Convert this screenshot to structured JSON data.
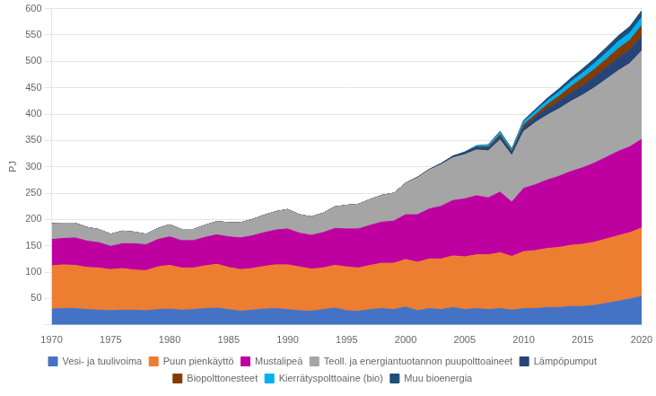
{
  "chart_data": {
    "type": "area",
    "stacked": true,
    "ylabel": "PJ",
    "x": [
      1970,
      1971,
      1972,
      1973,
      1974,
      1975,
      1976,
      1977,
      1978,
      1979,
      1980,
      1981,
      1982,
      1983,
      1984,
      1985,
      1986,
      1987,
      1988,
      1989,
      1990,
      1991,
      1992,
      1993,
      1994,
      1995,
      1996,
      1997,
      1998,
      1999,
      2000,
      2001,
      2002,
      2003,
      2004,
      2005,
      2006,
      2007,
      2008,
      2009,
      2010,
      2011,
      2012,
      2013,
      2014,
      2015,
      2016,
      2017,
      2018,
      2019,
      2020
    ],
    "series": [
      {
        "name": "Vesi- ja tuulivoima",
        "color": "#4472C4",
        "values": [
          30,
          31,
          31,
          29,
          28,
          27,
          28,
          28,
          27,
          29,
          30,
          28,
          29,
          31,
          32,
          29,
          26,
          28,
          30,
          31,
          29,
          27,
          26,
          29,
          32,
          27,
          26,
          29,
          31,
          29,
          34,
          27,
          31,
          29,
          33,
          29,
          31,
          29,
          31,
          28,
          31,
          31,
          33,
          33,
          35,
          35,
          37,
          41,
          45,
          49,
          54
        ]
      },
      {
        "name": "Puun pienkäyttö",
        "color": "#ED7D31",
        "values": [
          82,
          83,
          82,
          80,
          80,
          78,
          79,
          76,
          76,
          81,
          83,
          80,
          79,
          81,
          83,
          80,
          79,
          79,
          81,
          83,
          85,
          83,
          80,
          79,
          81,
          83,
          82,
          84,
          86,
          88,
          90,
          92,
          94,
          96,
          98,
          100,
          102,
          104,
          106,
          102,
          108,
          110,
          112,
          114,
          116,
          118,
          120,
          122,
          124,
          126,
          130
        ]
      },
      {
        "name": "Mustalipeä",
        "color": "#BE00A0",
        "values": [
          50,
          50,
          52,
          50,
          48,
          44,
          47,
          50,
          49,
          52,
          54,
          52,
          52,
          54,
          56,
          58,
          60,
          62,
          64,
          66,
          68,
          64,
          64,
          67,
          70,
          72,
          74,
          76,
          78,
          80,
          85,
          90,
          95,
          100,
          105,
          110,
          112,
          108,
          115,
          103,
          120,
          125,
          130,
          135,
          140,
          145,
          150,
          155,
          160,
          163,
          168
        ]
      },
      {
        "name": "Teoll. ja energiantuotannon puupolttoaineet",
        "color": "#A5A5A5",
        "values": [
          30,
          29,
          28,
          26,
          25,
          23,
          24,
          22,
          20,
          21,
          23,
          21,
          21,
          23,
          25,
          27,
          29,
          31,
          33,
          35,
          37,
          35,
          35,
          37,
          41,
          45,
          47,
          49,
          51,
          53,
          60,
          70,
          74,
          79,
          81,
          84,
          87,
          89,
          99,
          88,
          108,
          118,
          123,
          128,
          133,
          138,
          143,
          148,
          153,
          158,
          168
        ]
      },
      {
        "name": "Lämpöpumput",
        "color": "#264478",
        "values": [
          0,
          0,
          0,
          0,
          0,
          0,
          0,
          0,
          0,
          0,
          0,
          0,
          0,
          0,
          0,
          0,
          0,
          0,
          0,
          0,
          0,
          0,
          0,
          0,
          0,
          0,
          0,
          0,
          0,
          0,
          0,
          1,
          1,
          2,
          3,
          4,
          5,
          6,
          7,
          6,
          9,
          10,
          12,
          14,
          16,
          18,
          20,
          22,
          24,
          26,
          28
        ]
      },
      {
        "name": "Biopolttonesteet",
        "color": "#833C00",
        "values": [
          0,
          0,
          0,
          0,
          0,
          0,
          0,
          0,
          0,
          0,
          0,
          0,
          0,
          0,
          0,
          0,
          0,
          0,
          0,
          0,
          0,
          0,
          0,
          0,
          0,
          0,
          0,
          0,
          0,
          0,
          0,
          0,
          0,
          0,
          0,
          0,
          1,
          2,
          3,
          2,
          4,
          5,
          8,
          10,
          12,
          14,
          15,
          16,
          18,
          18,
          20
        ]
      },
      {
        "name": "Kierrätyspolttoaine (bio)",
        "color": "#00B0F0",
        "values": [
          0,
          0,
          0,
          0,
          0,
          0,
          0,
          0,
          0,
          0,
          0,
          0,
          0,
          0,
          0,
          0,
          0,
          0,
          0,
          0,
          0,
          0,
          0,
          0,
          0,
          0,
          0,
          0,
          0,
          0,
          0,
          0,
          0,
          0,
          0,
          1,
          2,
          3,
          4,
          3,
          5,
          6,
          7,
          8,
          9,
          10,
          11,
          12,
          13,
          14,
          15
        ]
      },
      {
        "name": "Muu bioenergia",
        "color": "#1F4E79",
        "values": [
          0,
          0,
          0,
          0,
          0,
          0,
          0,
          0,
          0,
          0,
          0,
          0,
          0,
          0,
          0,
          0,
          0,
          0,
          0,
          0,
          0,
          0,
          0,
          0,
          0,
          0,
          0,
          0,
          0,
          0,
          0,
          0,
          0,
          0,
          0,
          0,
          0,
          1,
          2,
          2,
          3,
          4,
          5,
          6,
          7,
          8,
          9,
          10,
          11,
          12,
          13
        ]
      }
    ],
    "xlim": [
      1970,
      2020
    ],
    "xticks": [
      1970,
      1975,
      1980,
      1985,
      1990,
      1995,
      2000,
      2005,
      2010,
      2015,
      2020
    ],
    "ylim": [
      0,
      600
    ],
    "yticks": [
      {
        "value": 0,
        "label": ""
      },
      50,
      100,
      150,
      200,
      250,
      300,
      350,
      400,
      450,
      500,
      550,
      600
    ],
    "grid": true,
    "legend": "bottom"
  }
}
